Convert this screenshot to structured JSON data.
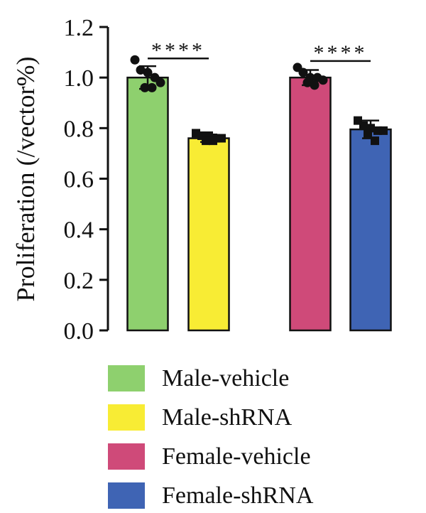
{
  "chart_data": {
    "type": "bar",
    "title": "",
    "ylabel": "Proliferation (/vector%)",
    "xlabel": "",
    "ylim": [
      0,
      1.2
    ],
    "yticks": [
      "0.0",
      "0.2",
      "0.4",
      "0.6",
      "0.8",
      "1.0",
      "1.2"
    ],
    "grid": false,
    "legend_position": "bottom",
    "series": [
      {
        "name": "Male-vehicle",
        "color": "#8ed06e",
        "value": 1.0,
        "error": 0.045,
        "marker": "circle",
        "points": [
          1.07,
          1.03,
          1.02,
          1.0,
          0.98,
          0.96,
          0.96
        ]
      },
      {
        "name": "Male-shRNA",
        "color": "#f8ec34",
        "value": 0.76,
        "error": 0.015,
        "marker": "square",
        "points": [
          0.78,
          0.77,
          0.77,
          0.76,
          0.76,
          0.75,
          0.75
        ]
      },
      {
        "name": "Female-vehicle",
        "color": "#cf4a79",
        "value": 1.0,
        "error": 0.03,
        "marker": "circle",
        "points": [
          1.04,
          1.02,
          1.0,
          1.0,
          0.99,
          0.98,
          0.97
        ]
      },
      {
        "name": "Female-shRNA",
        "color": "#3f64b4",
        "value": 0.795,
        "error": 0.035,
        "marker": "square",
        "points": [
          0.83,
          0.81,
          0.8,
          0.79,
          0.79,
          0.78,
          0.75
        ]
      }
    ],
    "comparisons": [
      {
        "between": [
          "Male-vehicle",
          "Male-shRNA"
        ],
        "label": "****"
      },
      {
        "between": [
          "Female-vehicle",
          "Female-shRNA"
        ],
        "label": "****"
      }
    ]
  }
}
